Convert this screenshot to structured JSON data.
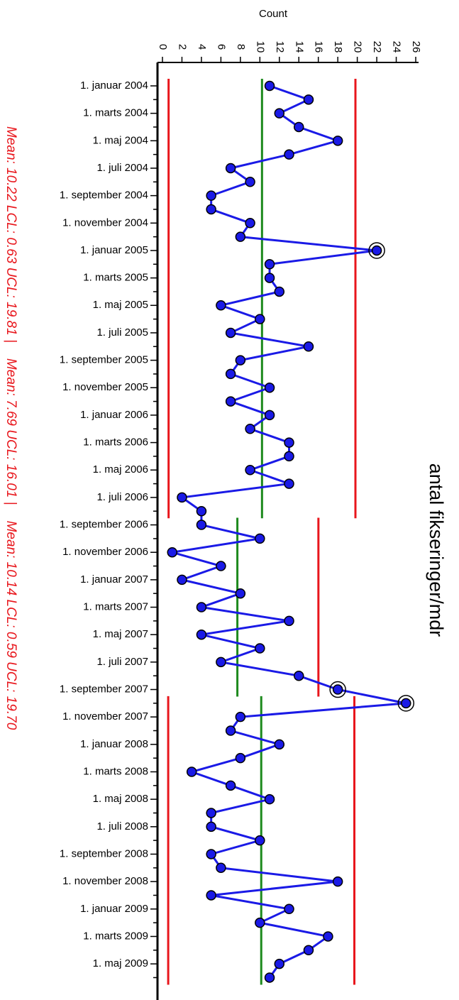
{
  "chart_data": {
    "type": "control",
    "title": "antal fikseringer/mdr",
    "x_label": "Count",
    "color": "#1a1ae6",
    "marker_color": "#1a1ae6",
    "limit_color": "#e8161c",
    "mean_color": "#1d8a1d",
    "annotation_color": "#e8161c",
    "categories": [
      "1. januar 2004",
      null,
      "1. marts 2004",
      null,
      "1. maj 2004",
      null,
      "1. juli 2004",
      null,
      "1. september 2004",
      null,
      "1. november 2004",
      null,
      "1. januar 2005",
      null,
      "1. marts 2005",
      null,
      "1. maj 2005",
      null,
      "1. juli 2005",
      null,
      "1. september 2005",
      null,
      "1. november 2005",
      null,
      "1. januar 2006",
      null,
      "1. marts 2006",
      null,
      "1. maj 2006",
      null,
      "1. juli 2006",
      null,
      "1. september 2006",
      null,
      "1. november 2006",
      null,
      "1. januar 2007",
      null,
      "1. marts 2007",
      null,
      "1. maj 2007",
      null,
      "1. juli 2007",
      null,
      "1. september 2007",
      null,
      "1. november 2007",
      null,
      "1. januar 2008",
      null,
      "1. marts 2008",
      null,
      "1. maj 2008",
      null,
      "1. juli 2008",
      null,
      "1. september 2008",
      null,
      "1. november 2008",
      null,
      "1. januar 2009",
      null,
      "1. marts 2009",
      null,
      "1. maj 2009",
      null
    ],
    "values": [
      11,
      15,
      12,
      14,
      18,
      13,
      7,
      9,
      5,
      5,
      9,
      8,
      22,
      11,
      11,
      12,
      6,
      10,
      7,
      15,
      8,
      7,
      11,
      7,
      11,
      9,
      13,
      13,
      9,
      13,
      2,
      4,
      4,
      10,
      1,
      6,
      2,
      8,
      4,
      13,
      4,
      10,
      6,
      14,
      18,
      25,
      8,
      7,
      12,
      8,
      3,
      7,
      11,
      5,
      5,
      10,
      5,
      6,
      18,
      5,
      13,
      10,
      17,
      15,
      12,
      11
    ],
    "phases": [
      {
        "label": "Mean: 10.22 LCL: 0.63 UCL: 19.81 |",
        "mean": 10.22,
        "lcl": 0.63,
        "ucl": 19.81,
        "from": 0,
        "to": 31
      },
      {
        "label": "Mean: 7.69 UCL: 16.01 |",
        "mean": 7.69,
        "ucl": 16.01,
        "from": 32,
        "to": 44
      },
      {
        "label": "Mean: 10.14 LCL: 0.59 UCL: 19.70",
        "mean": 10.14,
        "lcl": 0.59,
        "ucl": 19.7,
        "from": 45,
        "to": 65
      }
    ],
    "xlim": [
      0,
      26
    ],
    "xticks": [
      0,
      2,
      4,
      6,
      8,
      10,
      12,
      14,
      16,
      18,
      20,
      22,
      24,
      26
    ]
  }
}
